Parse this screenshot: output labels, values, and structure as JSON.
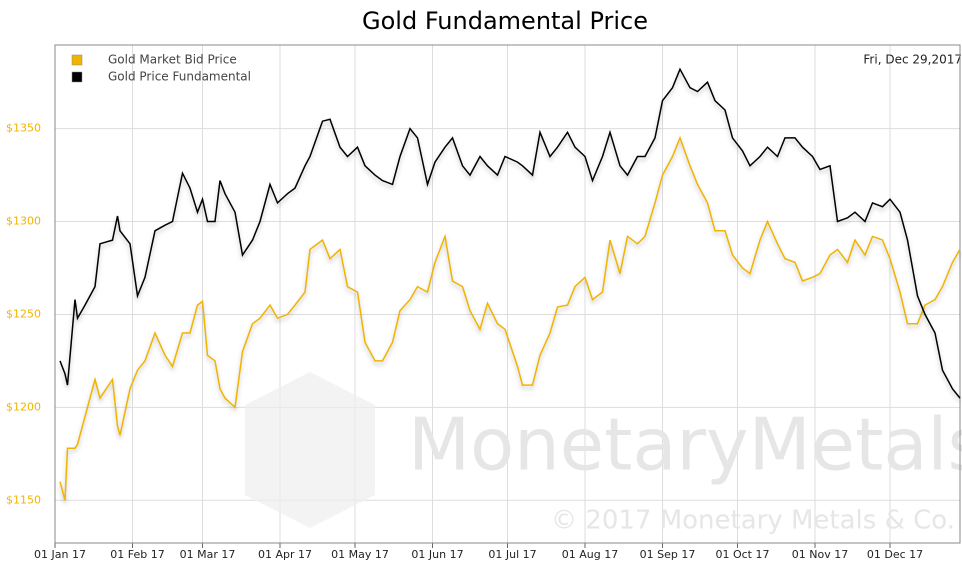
{
  "chart_data": {
    "type": "line",
    "title": "Gold Fundamental Price",
    "date_label": "Fri, Dec 29,2017",
    "watermark": "MonetaryMetals",
    "copyright": "© 2017 Monetary Metals & Co.",
    "legend": "top-left",
    "grid": true,
    "x": [
      "2017-01-03",
      "2017-01-05",
      "2017-01-06",
      "2017-01-09",
      "2017-01-10",
      "2017-01-13",
      "2017-01-17",
      "2017-01-19",
      "2017-01-24",
      "2017-01-26",
      "2017-01-27",
      "2017-01-31",
      "2017-02-03",
      "2017-02-06",
      "2017-02-10",
      "2017-02-14",
      "2017-02-17",
      "2017-02-21",
      "2017-02-24",
      "2017-02-27",
      "2017-03-01",
      "2017-03-03",
      "2017-03-06",
      "2017-03-08",
      "2017-03-10",
      "2017-03-14",
      "2017-03-17",
      "2017-03-21",
      "2017-03-24",
      "2017-03-28",
      "2017-03-31",
      "2017-04-04",
      "2017-04-07",
      "2017-04-11",
      "2017-04-13",
      "2017-04-18",
      "2017-04-21",
      "2017-04-25",
      "2017-04-28",
      "2017-05-02",
      "2017-05-05",
      "2017-05-09",
      "2017-05-12",
      "2017-05-16",
      "2017-05-19",
      "2017-05-23",
      "2017-05-26",
      "2017-05-30",
      "2017-06-02",
      "2017-06-06",
      "2017-06-09",
      "2017-06-13",
      "2017-06-16",
      "2017-06-20",
      "2017-06-23",
      "2017-06-27",
      "2017-06-30",
      "2017-07-05",
      "2017-07-07",
      "2017-07-11",
      "2017-07-14",
      "2017-07-18",
      "2017-07-21",
      "2017-07-25",
      "2017-07-28",
      "2017-08-01",
      "2017-08-04",
      "2017-08-08",
      "2017-08-11",
      "2017-08-15",
      "2017-08-18",
      "2017-08-22",
      "2017-08-25",
      "2017-08-29",
      "2017-09-01",
      "2017-09-05",
      "2017-09-08",
      "2017-09-12",
      "2017-09-15",
      "2017-09-19",
      "2017-09-22",
      "2017-09-26",
      "2017-09-29",
      "2017-10-03",
      "2017-10-06",
      "2017-10-10",
      "2017-10-13",
      "2017-10-17",
      "2017-10-20",
      "2017-10-24",
      "2017-10-27",
      "2017-10-31",
      "2017-11-03",
      "2017-11-07",
      "2017-11-10",
      "2017-11-14",
      "2017-11-17",
      "2017-11-21",
      "2017-11-24",
      "2017-11-28",
      "2017-12-01",
      "2017-12-05",
      "2017-12-08",
      "2017-12-12",
      "2017-12-15",
      "2017-12-19",
      "2017-12-22",
      "2017-12-26",
      "2017-12-29"
    ],
    "series": [
      {
        "name": "Gold Market Bid Price",
        "color": "#f0b400",
        "values": [
          1160,
          1150,
          1178,
          1178,
          1180,
          1195,
          1215,
          1205,
          1215,
          1190,
          1185,
          1210,
          1220,
          1225,
          1240,
          1228,
          1222,
          1240,
          1240,
          1255,
          1257,
          1228,
          1225,
          1210,
          1205,
          1200,
          1230,
          1245,
          1248,
          1255,
          1248,
          1250,
          1255,
          1262,
          1285,
          1290,
          1280,
          1285,
          1265,
          1262,
          1235,
          1225,
          1225,
          1235,
          1252,
          1258,
          1265,
          1262,
          1278,
          1292,
          1268,
          1265,
          1252,
          1242,
          1256,
          1245,
          1242,
          1222,
          1212,
          1212,
          1228,
          1240,
          1254,
          1255,
          1265,
          1270,
          1258,
          1262,
          1290,
          1272,
          1292,
          1288,
          1292,
          1310,
          1325,
          1335,
          1345,
          1330,
          1320,
          1310,
          1295,
          1295,
          1282,
          1275,
          1272,
          1290,
          1300,
          1288,
          1280,
          1278,
          1268,
          1270,
          1272,
          1282,
          1285,
          1278,
          1290,
          1282,
          1292,
          1290,
          1280,
          1262,
          1245,
          1245,
          1255,
          1258,
          1265,
          1278,
          1285
        ]
      },
      {
        "name": "Gold Price Fundamental",
        "color": "#000000",
        "values": [
          1225,
          1218,
          1212,
          1258,
          1248,
          1255,
          1265,
          1288,
          1290,
          1303,
          1295,
          1288,
          1260,
          1270,
          1295,
          1298,
          1300,
          1326,
          1318,
          1305,
          1312,
          1300,
          1300,
          1322,
          1315,
          1305,
          1282,
          1290,
          1300,
          1320,
          1310,
          1315,
          1318,
          1330,
          1335,
          1354,
          1355,
          1340,
          1335,
          1340,
          1330,
          1325,
          1322,
          1320,
          1335,
          1350,
          1345,
          1320,
          1332,
          1340,
          1345,
          1330,
          1325,
          1335,
          1330,
          1325,
          1335,
          1332,
          1330,
          1325,
          1348,
          1335,
          1340,
          1348,
          1340,
          1335,
          1322,
          1335,
          1348,
          1330,
          1325,
          1335,
          1335,
          1345,
          1365,
          1372,
          1382,
          1372,
          1370,
          1375,
          1365,
          1360,
          1345,
          1338,
          1330,
          1335,
          1340,
          1335,
          1345,
          1345,
          1340,
          1335,
          1328,
          1330,
          1300,
          1302,
          1305,
          1300,
          1310,
          1308,
          1312,
          1305,
          1290,
          1260,
          1250,
          1240,
          1220,
          1210,
          1205
        ]
      }
    ],
    "xlim": [
      "2017-01-01",
      "2017-12-29"
    ],
    "xticks": [
      {
        "value": "2017-01-01",
        "label": "01 Jan 17"
      },
      {
        "value": "2017-02-01",
        "label": "01 Feb 17"
      },
      {
        "value": "2017-03-01",
        "label": "01 Mar 17"
      },
      {
        "value": "2017-04-01",
        "label": "01 Apr 17"
      },
      {
        "value": "2017-05-01",
        "label": "01 May 17"
      },
      {
        "value": "2017-06-01",
        "label": "01 Jun 17"
      },
      {
        "value": "2017-07-01",
        "label": "01 Jul 17"
      },
      {
        "value": "2017-08-01",
        "label": "01 Aug 17"
      },
      {
        "value": "2017-09-01",
        "label": "01 Sep 17"
      },
      {
        "value": "2017-10-01",
        "label": "01 Oct 17"
      },
      {
        "value": "2017-11-01",
        "label": "01 Nov 17"
      },
      {
        "value": "2017-12-01",
        "label": "01 Dec 17"
      }
    ],
    "ylim": [
      1127,
      1395
    ],
    "yticks": [
      {
        "value": 1150,
        "label": "$1150"
      },
      {
        "value": 1200,
        "label": "$1200"
      },
      {
        "value": 1250,
        "label": "$1250"
      },
      {
        "value": 1300,
        "label": "$1300"
      },
      {
        "value": 1350,
        "label": "$1350"
      }
    ]
  }
}
